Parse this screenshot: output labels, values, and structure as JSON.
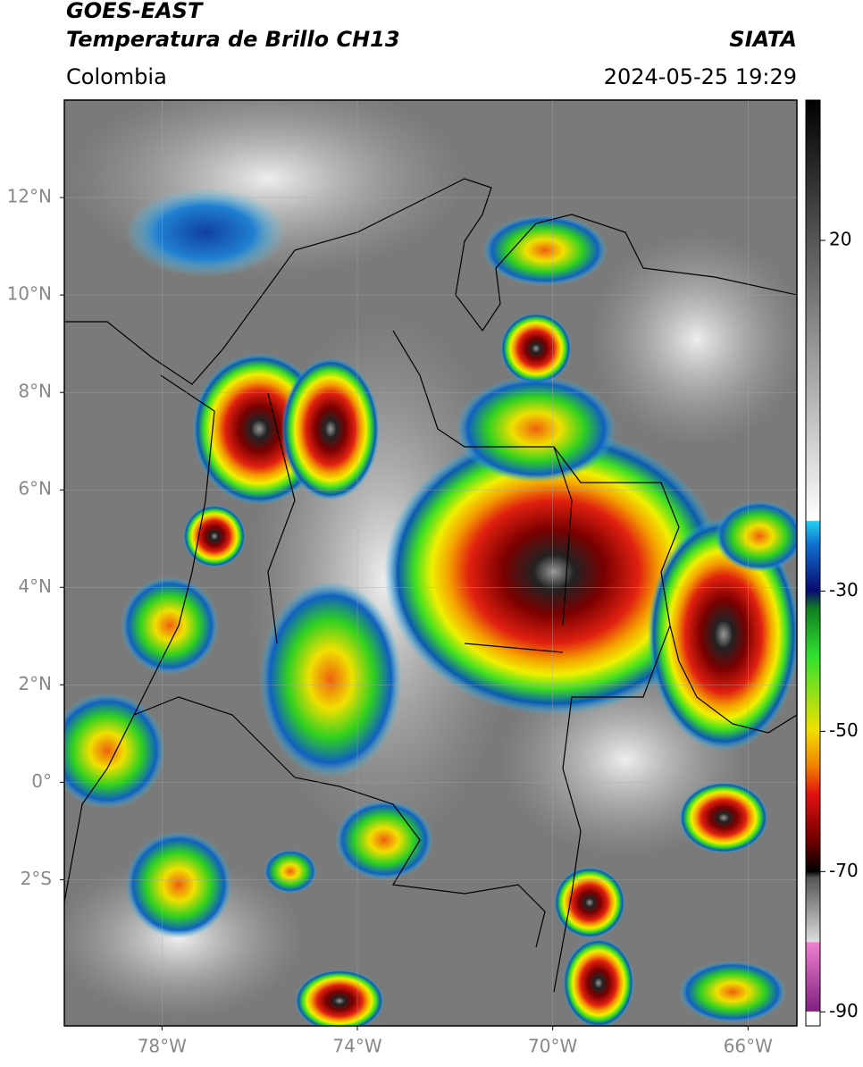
{
  "chart_data": {
    "type": "map",
    "title": "GOES-EAST",
    "subtitle": "Temperatura de Brillo CH13",
    "source": "SIATA",
    "region": "Colombia",
    "datetime": "2024-05-25 19:29",
    "xlim": [
      -80,
      -65
    ],
    "ylim": [
      -5,
      14
    ],
    "xticks": [
      {
        "value": -78,
        "label": "78°W"
      },
      {
        "value": -74,
        "label": "74°W"
      },
      {
        "value": -70,
        "label": "70°W"
      },
      {
        "value": -66,
        "label": "66°W"
      }
    ],
    "yticks": [
      {
        "value": 12,
        "label": "12°N"
      },
      {
        "value": 10,
        "label": "10°N"
      },
      {
        "value": 8,
        "label": "8°N"
      },
      {
        "value": 6,
        "label": "6°N"
      },
      {
        "value": 4,
        "label": "4°N"
      },
      {
        "value": 2,
        "label": "2°N"
      },
      {
        "value": 0,
        "label": "0°"
      },
      {
        "value": -2,
        "label": "2°S"
      }
    ],
    "grid": true,
    "colorbar": {
      "lim": [
        -92,
        40
      ],
      "ticks": [
        20,
        -30,
        -50,
        -70,
        -90
      ]
    }
  }
}
